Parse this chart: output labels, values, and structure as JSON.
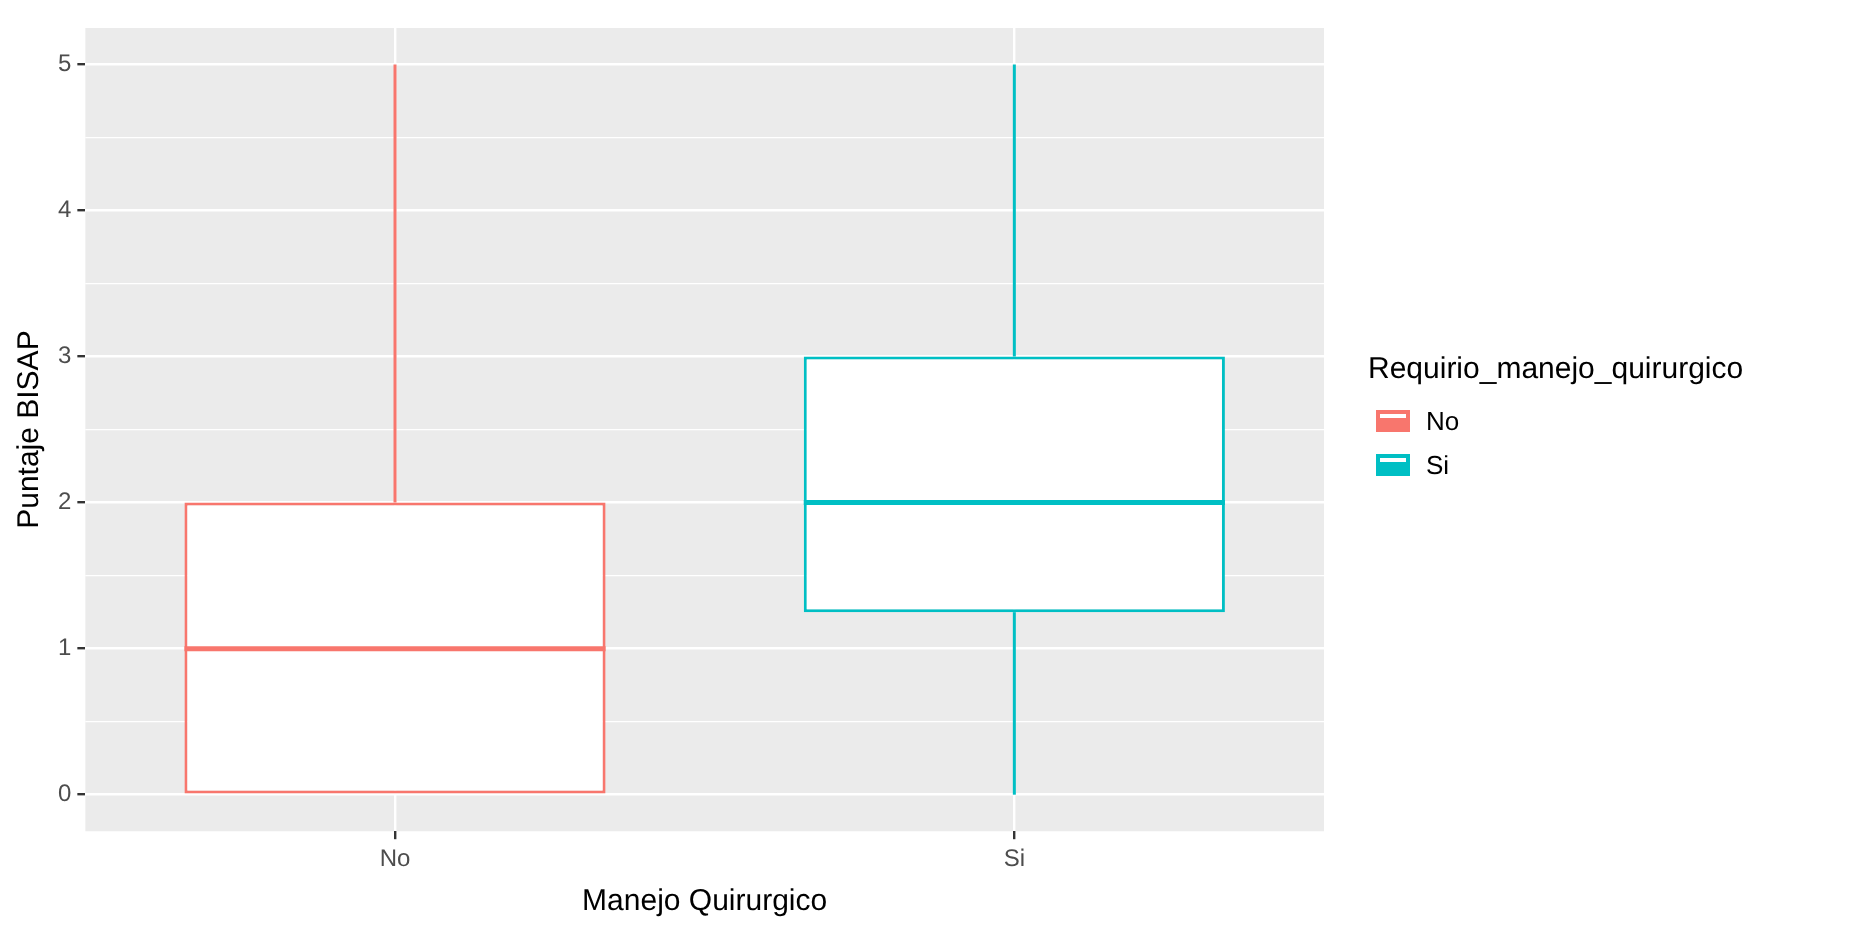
{
  "chart_data": {
    "type": "box",
    "xlabel": "Manejo Quirurgico",
    "ylabel": "Puntaje BISAP",
    "legend_title": "Requirio_manejo_quirurgico",
    "legend": "right",
    "grid": true,
    "categories": [
      "No",
      "Si"
    ],
    "ylim": [
      -0.25,
      5.25
    ],
    "yticks": [
      0,
      1,
      2,
      3,
      4,
      5
    ],
    "series": [
      {
        "name": "No",
        "color": "#f8766d",
        "boxes": [
          {
            "low": 0,
            "q1": 0,
            "median": 1,
            "q3": 2,
            "high": 5
          },
          null
        ]
      },
      {
        "name": "Si",
        "color": "#00bfc4",
        "boxes": [
          null,
          {
            "low": 0,
            "q1": 1.25,
            "median": 2,
            "q3": 3,
            "high": 5
          }
        ]
      }
    ]
  }
}
